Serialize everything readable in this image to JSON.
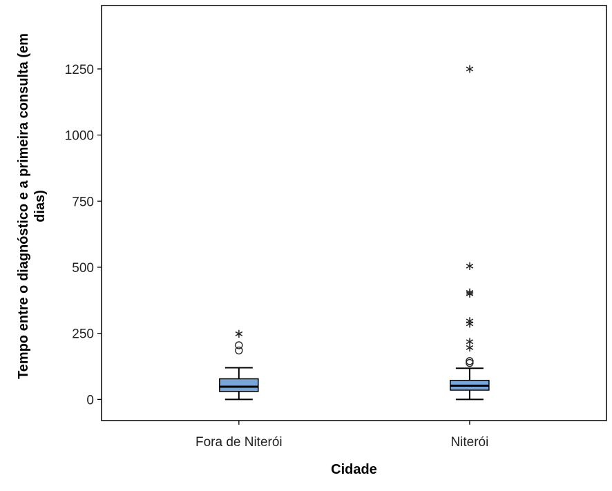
{
  "chart_data": {
    "type": "boxplot",
    "title": "",
    "xlabel": "Cidade",
    "ylabel_lines": [
      "Tempo entre o diagnóstico e a primeira consulta (em",
      "dias)"
    ],
    "ylim": [
      -80,
      1490
    ],
    "yticks": [
      0,
      250,
      500,
      750,
      1000,
      1250
    ],
    "grid": false,
    "legend": "none",
    "box_color": "#79a6d9",
    "line_color": "#000000",
    "categories": [
      "Fora de Niterói",
      "Niterói"
    ],
    "boxes": [
      {
        "category": "Fora de Niterói",
        "whisker_low": 0,
        "q1": 30,
        "median": 48,
        "q3": 78,
        "whisker_high": 120,
        "outliers_circle": [
          185,
          205
        ],
        "outliers_star": [
          252
        ]
      },
      {
        "category": "Niterói",
        "whisker_low": 0,
        "q1": 35,
        "median": 52,
        "q3": 72,
        "whisker_high": 118,
        "outliers_circle": [
          138,
          145
        ],
        "outliers_star": [
          200,
          222,
          290,
          300,
          403,
          408,
          508,
          1253
        ]
      }
    ]
  }
}
